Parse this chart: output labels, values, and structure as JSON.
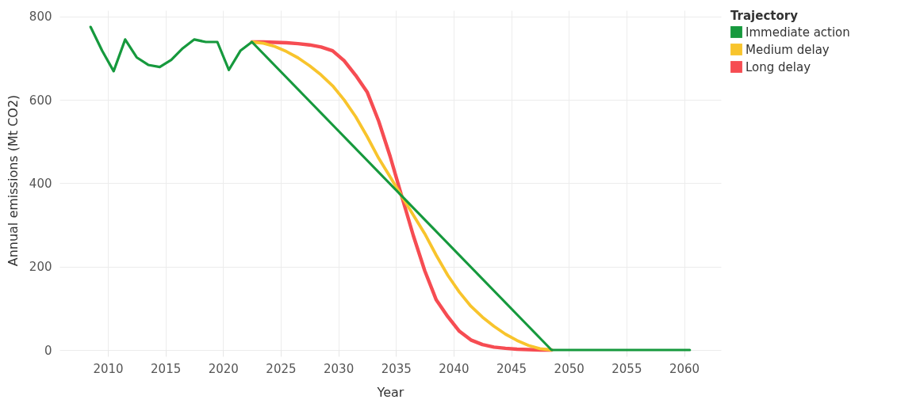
{
  "chart_data": {
    "type": "line",
    "xlabel": "Year",
    "ylabel": "Annual emissions (Mt CO2)",
    "legend_title": "Trajectory",
    "xlim": [
      2005.8,
      2063.2
    ],
    "ylim": [
      0,
      815
    ],
    "xticks": [
      2010,
      2015,
      2020,
      2025,
      2030,
      2035,
      2040,
      2045,
      2050,
      2055,
      2060
    ],
    "yticks": [
      0,
      200,
      400,
      600,
      800
    ],
    "grid": true,
    "legend": "right",
    "line_style": "solid",
    "series": [
      {
        "name": "Immediate action",
        "color": "#16993d",
        "x": [
          2008.5,
          2009.5,
          2010.5,
          2011.5,
          2012.5,
          2013.5,
          2014.5,
          2015.5,
          2016.5,
          2017.5,
          2018.5,
          2019.5,
          2020.5,
          2021.5,
          2022.5,
          2048.5,
          2060.5
        ],
        "values": [
          775,
          718,
          669,
          745,
          702,
          684,
          679,
          696,
          724,
          745,
          739,
          739,
          672,
          718,
          739,
          0,
          0
        ]
      },
      {
        "name": "Medium delay",
        "color": "#f8c42c",
        "x": [
          2022.5,
          2023.5,
          2024.5,
          2025.5,
          2026.5,
          2027.5,
          2028.5,
          2029.5,
          2030.5,
          2031.5,
          2032.5,
          2033.5,
          2034.5,
          2035.5,
          2036.5,
          2037.5,
          2038.5,
          2039.5,
          2040.5,
          2041.5,
          2042.5,
          2043.5,
          2044.5,
          2045.5,
          2046.5,
          2047.5,
          2048.5
        ],
        "values": [
          739,
          736,
          728,
          716,
          701,
          682,
          660,
          634,
          600,
          560,
          512,
          460,
          415,
          369,
          324,
          279,
          227,
          179,
          139,
          105,
          79,
          57,
          38,
          23,
          11,
          3,
          0
        ]
      },
      {
        "name": "Long delay",
        "color": "#f64c52",
        "x": [
          2022.5,
          2023.5,
          2024.5,
          2025.5,
          2026.5,
          2027.5,
          2028.5,
          2029.5,
          2030.5,
          2031.5,
          2032.5,
          2033.5,
          2034.5,
          2035.5,
          2036.5,
          2037.5,
          2038.5,
          2039.5,
          2040.5,
          2041.5,
          2042.5,
          2043.5,
          2044.5,
          2045.5,
          2046.5,
          2047.5,
          2048.5
        ],
        "values": [
          739,
          739,
          738,
          737,
          735,
          732,
          727,
          718,
          694,
          659,
          619,
          549,
          464,
          369,
          275,
          190,
          120,
          80,
          45,
          24,
          13,
          7,
          4,
          2,
          1,
          0,
          0
        ]
      }
    ]
  }
}
